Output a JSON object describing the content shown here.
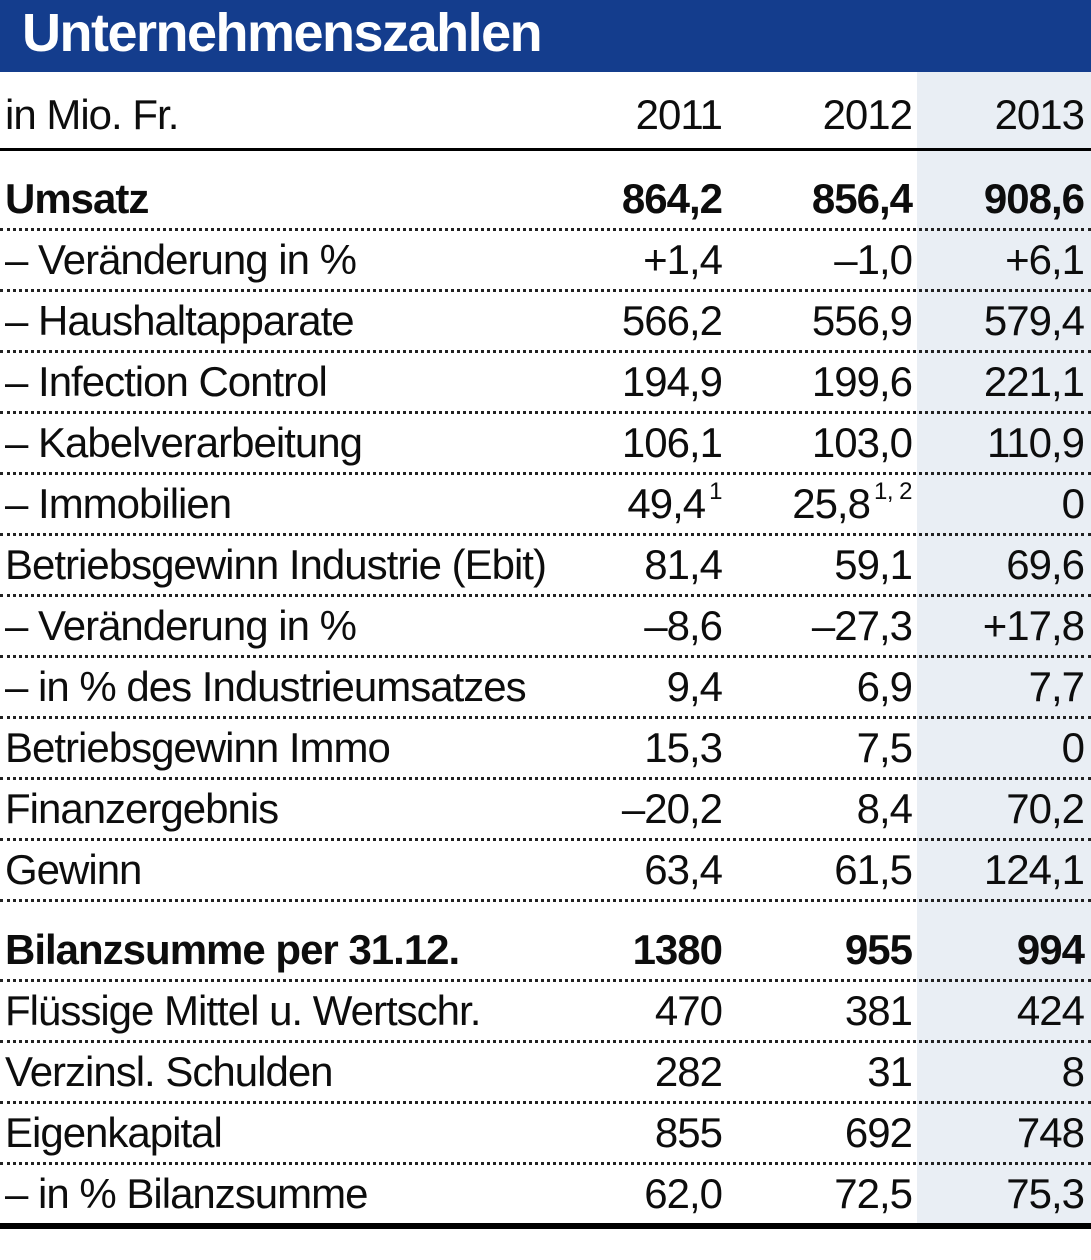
{
  "title": "Unternehmenszahlen",
  "colors": {
    "title_bar_bg": "#143d8d",
    "title_text": "#ffffff",
    "highlight_2013_column_bg": "#e9eef4",
    "text": "#0d0d0d"
  },
  "header": {
    "unit_label": "in Mio. Fr.",
    "col2011": "2011",
    "col2012": "2012",
    "col2013": "2013"
  },
  "table": {
    "rows": [
      {
        "label": "Umsatz",
        "c2011": "864,2",
        "c2012": "856,4",
        "c2013": "908,6"
      },
      {
        "label": "– Veränderung in %",
        "c2011": "+1,4",
        "c2012": "–1,0",
        "c2013": "+6,1"
      },
      {
        "label": "– Haushaltapparate",
        "c2011": "566,2",
        "c2012": "556,9",
        "c2013": "579,4"
      },
      {
        "label": "– Infection Control",
        "c2011": "194,9",
        "c2012": "199,6",
        "c2013": "221,1"
      },
      {
        "label": "– Kabelverarbeitung",
        "c2011": "106,1",
        "c2012": "103,0",
        "c2013": "110,9"
      },
      {
        "label": "– Immobilien",
        "c2011": "49,4",
        "c2011_sup": "1",
        "c2012": "25,8",
        "c2012_sup": "1, 2",
        "c2013": "0"
      },
      {
        "label": "Betriebsgewinn Industrie (Ebit)",
        "c2011": "81,4",
        "c2012": "59,1",
        "c2013": "69,6"
      },
      {
        "label": "– Veränderung in %",
        "c2011": "–8,6",
        "c2012": "–27,3",
        "c2013": "+17,8"
      },
      {
        "label": "– in % des Industrieumsatzes",
        "c2011": "9,4",
        "c2012": "6,9",
        "c2013": "7,7"
      },
      {
        "label": "Betriebsgewinn Immo",
        "c2011": "15,3",
        "c2012": "7,5",
        "c2013": "0"
      },
      {
        "label": "Finanzergebnis",
        "c2011": "–20,2",
        "c2012": "8,4",
        "c2013": "70,2"
      },
      {
        "label": "Gewinn",
        "c2011": "63,4",
        "c2012": "61,5",
        "c2013": "124,1"
      },
      {
        "label": "Bilanzsumme per 31.12.",
        "c2011": "1380",
        "c2012": "955",
        "c2013": "994"
      },
      {
        "label": "Flüssige Mittel u. Wertschr.",
        "c2011": "470",
        "c2012": "381",
        "c2013": "424"
      },
      {
        "label": "Verzinsl. Schulden",
        "c2011": "282",
        "c2012": "31",
        "c2013": "8"
      },
      {
        "label": "Eigenkapital",
        "c2011": "855",
        "c2012": "692",
        "c2013": "748"
      },
      {
        "label": "– in % Bilanzsumme",
        "c2011": "62,0",
        "c2012": "72,5",
        "c2013": "75,3"
      }
    ]
  },
  "chart_data": {
    "type": "table",
    "title": "Unternehmenszahlen",
    "unit": "in Mio. Fr.",
    "columns": [
      "2011",
      "2012",
      "2013"
    ],
    "highlighted_column": "2013",
    "rows": [
      {
        "label": "Umsatz",
        "values": [
          864.2,
          856.4,
          908.6
        ],
        "bold": true
      },
      {
        "label": "– Veränderung in %",
        "values": [
          1.4,
          -1.0,
          6.1
        ]
      },
      {
        "label": "– Haushaltapparate",
        "values": [
          566.2,
          556.9,
          579.4
        ]
      },
      {
        "label": "– Infection Control",
        "values": [
          194.9,
          199.6,
          221.1
        ]
      },
      {
        "label": "– Kabelverarbeitung",
        "values": [
          106.1,
          103.0,
          110.9
        ]
      },
      {
        "label": "– Immobilien",
        "values": [
          49.4,
          25.8,
          0
        ],
        "footnotes": [
          "1",
          "1, 2",
          null
        ]
      },
      {
        "label": "Betriebsgewinn Industrie (Ebit)",
        "values": [
          81.4,
          59.1,
          69.6
        ]
      },
      {
        "label": "– Veränderung in %",
        "values": [
          -8.6,
          -27.3,
          17.8
        ]
      },
      {
        "label": "– in % des Industrieumsatzes",
        "values": [
          9.4,
          6.9,
          7.7
        ]
      },
      {
        "label": "Betriebsgewinn Immo",
        "values": [
          15.3,
          7.5,
          0
        ]
      },
      {
        "label": "Finanzergebnis",
        "values": [
          -20.2,
          8.4,
          70.2
        ]
      },
      {
        "label": "Gewinn",
        "values": [
          63.4,
          61.5,
          124.1
        ]
      },
      {
        "label": "Bilanzsumme per 31.12.",
        "values": [
          1380,
          955,
          994
        ],
        "bold": true
      },
      {
        "label": "Flüssige Mittel u. Wertschr.",
        "values": [
          470,
          381,
          424
        ]
      },
      {
        "label": "Verzinsl. Schulden",
        "values": [
          282,
          31,
          8
        ]
      },
      {
        "label": "Eigenkapital",
        "values": [
          855,
          692,
          748
        ]
      },
      {
        "label": "– in % Bilanzsumme",
        "values": [
          62.0,
          72.5,
          75.3
        ]
      }
    ]
  }
}
